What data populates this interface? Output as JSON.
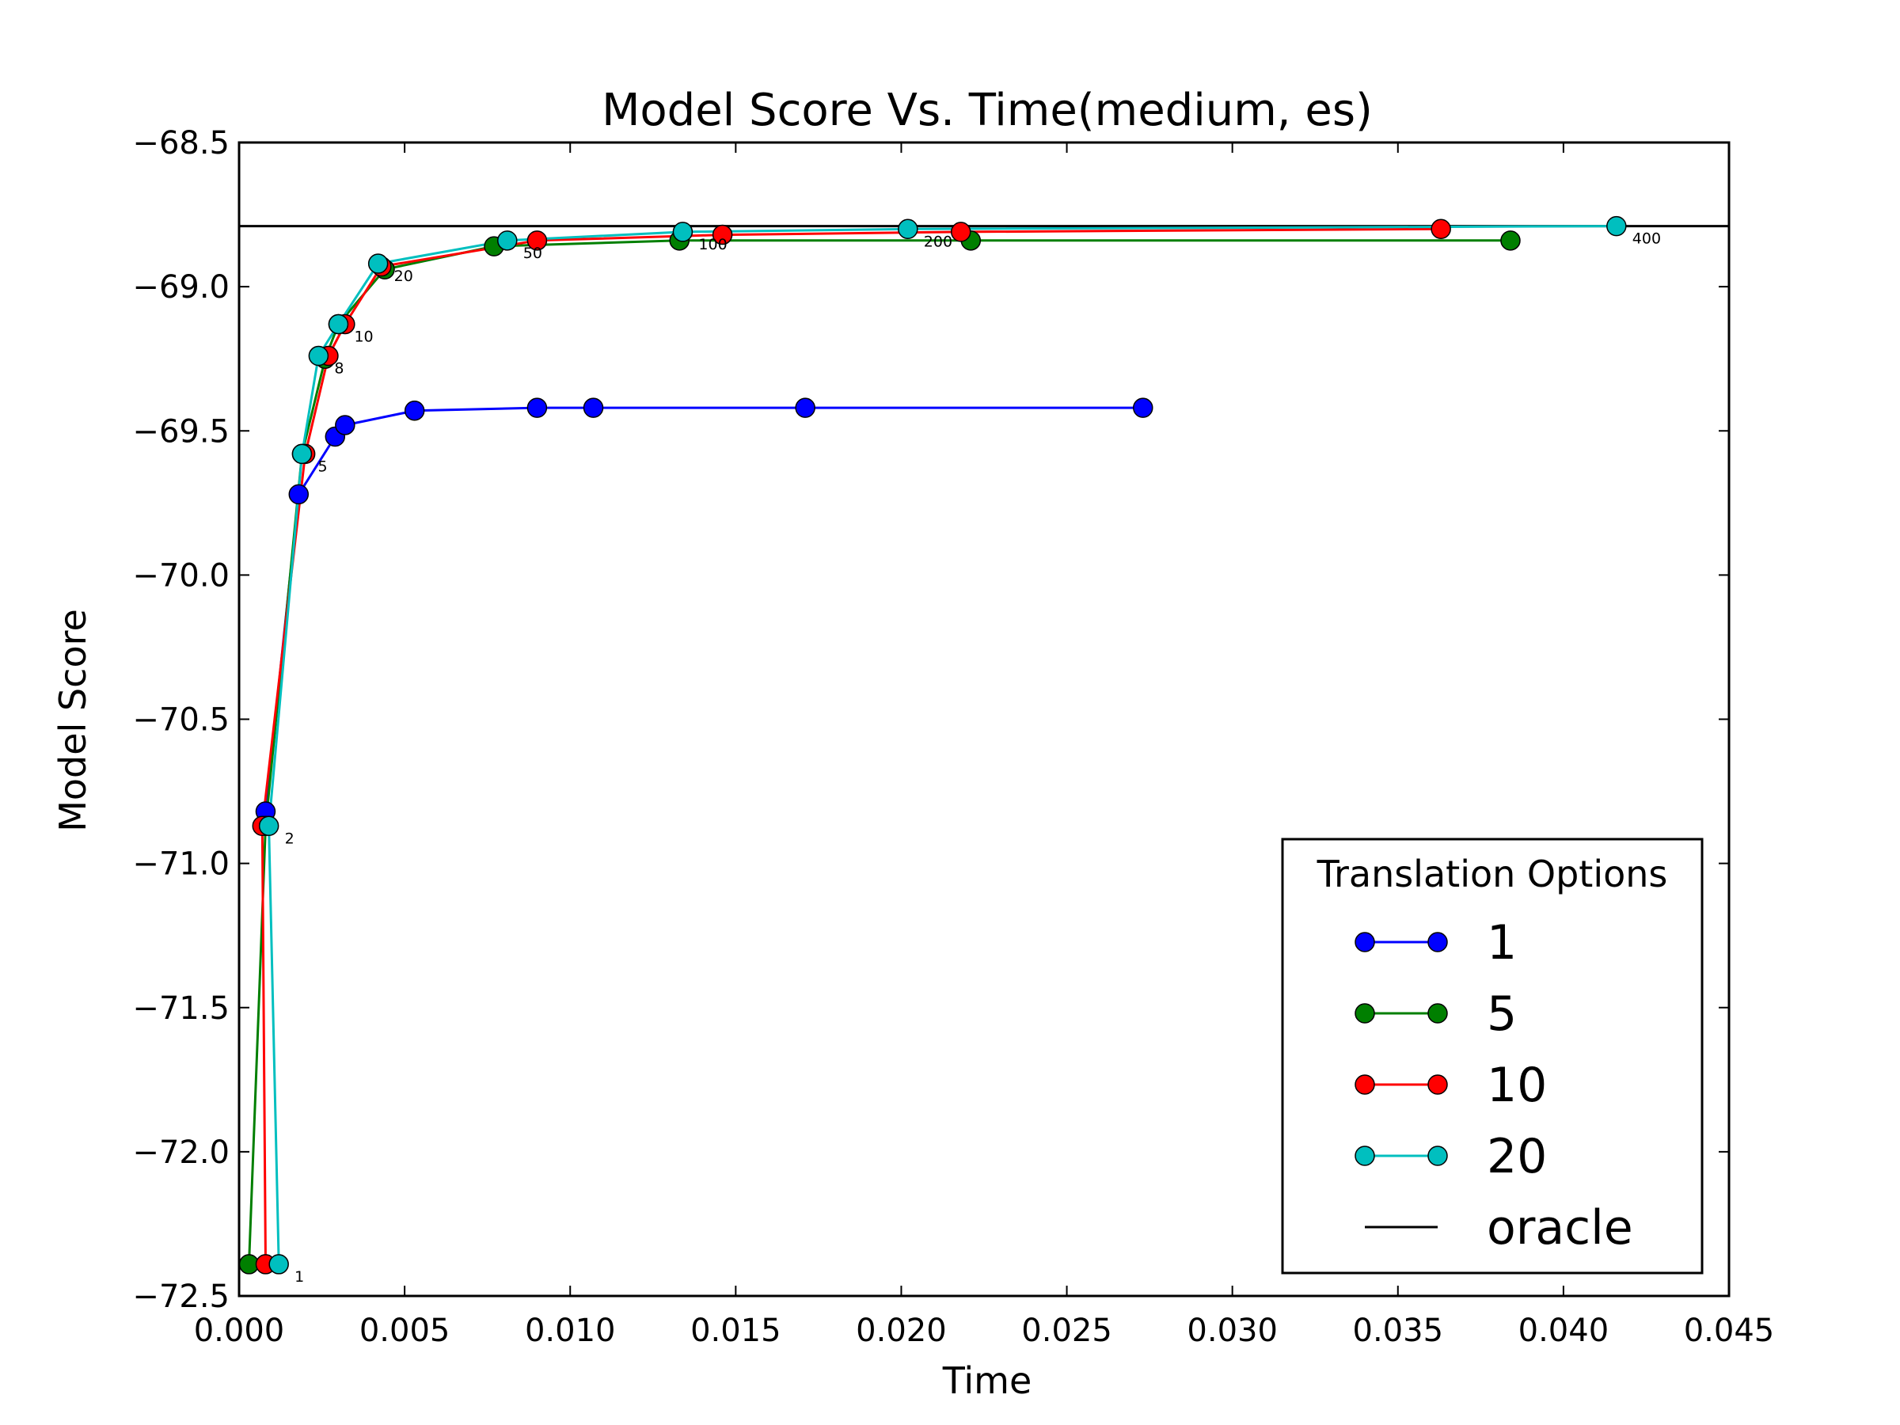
{
  "chart_data": {
    "type": "line",
    "title": "Model Score Vs. Time(medium, es)",
    "xlabel": "Time",
    "ylabel": "Model Score",
    "xlim": [
      0.0,
      0.045
    ],
    "ylim": [
      -72.5,
      -68.5
    ],
    "xticks": [
      "0.000",
      "0.005",
      "0.010",
      "0.015",
      "0.020",
      "0.025",
      "0.030",
      "0.035",
      "0.040",
      "0.045"
    ],
    "yticks": [
      "−68.5",
      "−69.0",
      "−69.5",
      "−70.0",
      "−70.5",
      "−71.0",
      "−71.5",
      "−72.0",
      "−72.5"
    ],
    "grid": false,
    "legend": {
      "title": "Translation Options",
      "position": "bottom-right"
    },
    "series": [
      {
        "name": "1",
        "color": "#0000ff",
        "x": [
          0.0008,
          0.0018,
          0.0029,
          0.0032,
          0.0053,
          0.009,
          0.0107,
          0.0171,
          0.0273
        ],
        "y": [
          -70.82,
          -69.72,
          -69.52,
          -69.48,
          -69.43,
          -69.42,
          -69.42,
          -69.42,
          -69.42
        ]
      },
      {
        "name": "5",
        "color": "#007f00",
        "x": [
          0.0003,
          0.0008,
          0.0019,
          0.0026,
          0.003,
          0.0044,
          0.0077,
          0.0133,
          0.0221,
          0.0384
        ],
        "y": [
          -72.39,
          -70.87,
          -69.58,
          -69.25,
          -69.13,
          -68.94,
          -68.86,
          -68.84,
          -68.84,
          -68.84
        ]
      },
      {
        "name": "10",
        "color": "#ff0000",
        "x": [
          0.0008,
          0.0007,
          0.002,
          0.0027,
          0.0032,
          0.0043,
          0.009,
          0.0146,
          0.0218,
          0.0363
        ],
        "y": [
          -72.39,
          -70.87,
          -69.58,
          -69.24,
          -69.13,
          -68.93,
          -68.84,
          -68.82,
          -68.81,
          -68.8
        ]
      },
      {
        "name": "20",
        "color": "#00bfbf",
        "x": [
          0.0012,
          0.0009,
          0.0019,
          0.0024,
          0.003,
          0.0042,
          0.0081,
          0.0134,
          0.0202,
          0.0416
        ],
        "y": [
          -72.39,
          -70.87,
          -69.58,
          -69.24,
          -69.13,
          -68.92,
          -68.84,
          -68.81,
          -68.8,
          -68.79
        ]
      }
    ],
    "oracle": {
      "name": "oracle",
      "color": "#000000",
      "y": -68.79
    },
    "annotations": [
      {
        "text": "1",
        "x": 0.0012,
        "y": -72.39
      },
      {
        "text": "2",
        "x": 0.0009,
        "y": -70.87
      },
      {
        "text": "5",
        "x": 0.0019,
        "y": -69.58
      },
      {
        "text": "8",
        "x": 0.0024,
        "y": -69.24
      },
      {
        "text": "10",
        "x": 0.003,
        "y": -69.13
      },
      {
        "text": "20",
        "x": 0.0042,
        "y": -68.92
      },
      {
        "text": "50",
        "x": 0.0081,
        "y": -68.84
      },
      {
        "text": "100",
        "x": 0.0134,
        "y": -68.81
      },
      {
        "text": "200",
        "x": 0.0202,
        "y": -68.8
      },
      {
        "text": "400",
        "x": 0.0416,
        "y": -68.79
      }
    ]
  }
}
